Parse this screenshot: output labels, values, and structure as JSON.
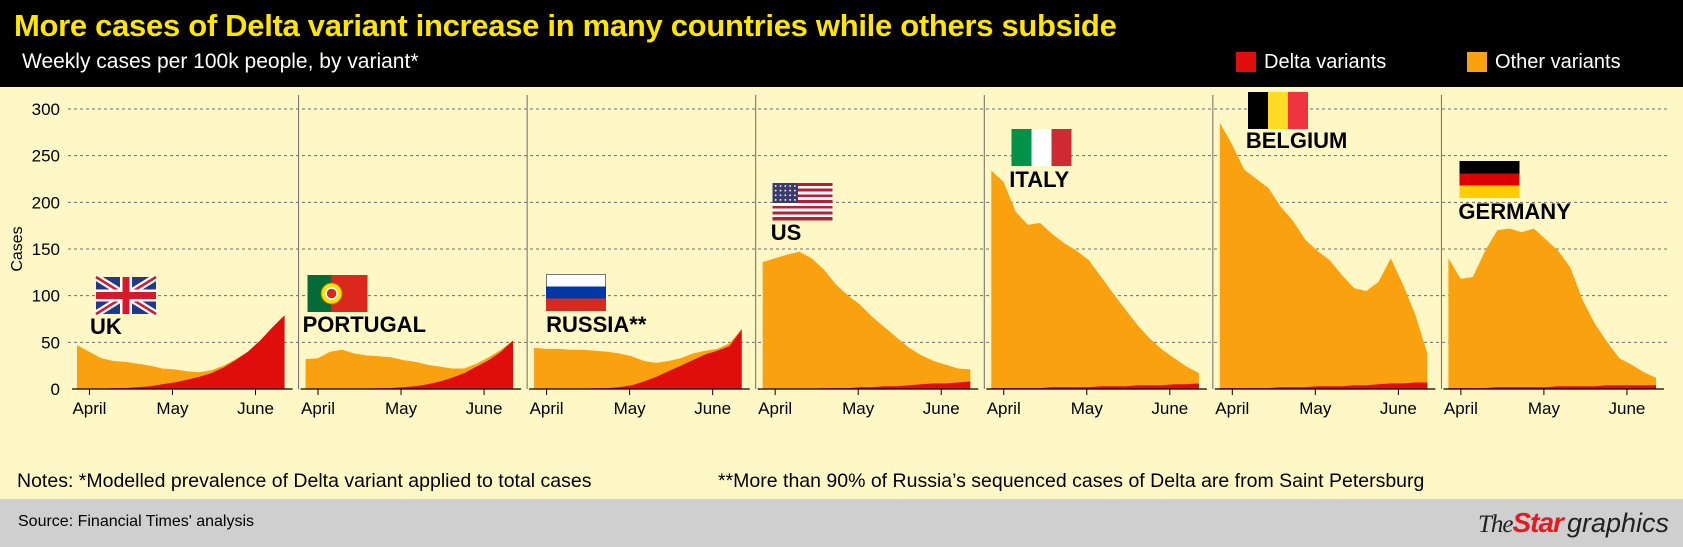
{
  "title": "More cases of Delta variant increase in many countries while others subside",
  "subtitle": "Weekly cases per 100k people, by variant*",
  "legend": {
    "delta_label": "Delta variants",
    "other_label": "Other variants",
    "delta_color": "#e00d0d",
    "other_color": "#f9a10f"
  },
  "notes": {
    "note1": "Notes: *Modelled prevalence of Delta variant applied to total cases",
    "note2": "**More than 90% of Russia’s sequenced cases of Delta are from Saint Petersburg"
  },
  "source": "Source: Financial Times' analysis",
  "logo": {
    "the": "The",
    "star": "Star",
    "graphics": "graphics"
  },
  "chart_data": {
    "type": "area",
    "ylabel": "Cases",
    "ylim": [
      0,
      300
    ],
    "yticks": [
      0,
      50,
      100,
      150,
      200,
      250,
      300
    ],
    "xticks": [
      "April",
      "May",
      "June"
    ],
    "grid": true,
    "stacked": true,
    "series_names": [
      "Delta variants",
      "Other variants"
    ],
    "panels": [
      {
        "country": "UK",
        "flag": "uk",
        "total": [
          47,
          40,
          33,
          30,
          29,
          27,
          25,
          22,
          21,
          19,
          18,
          20,
          25,
          32,
          40,
          52,
          66,
          79
        ],
        "delta": [
          0,
          0,
          0,
          1,
          1,
          2,
          3,
          5,
          7,
          10,
          13,
          17,
          23,
          31,
          40,
          52,
          66,
          79
        ]
      },
      {
        "country": "PORTUGAL",
        "flag": "portugal",
        "total": [
          32,
          33,
          40,
          42,
          38,
          36,
          35,
          34,
          31,
          29,
          26,
          24,
          22,
          22,
          27,
          34,
          42,
          52
        ],
        "delta": [
          0,
          0,
          0,
          0,
          0,
          0,
          1,
          1,
          2,
          3,
          5,
          8,
          12,
          17,
          24,
          31,
          40,
          52
        ]
      },
      {
        "country": "RUSSIA**",
        "flag": "russia",
        "total": [
          44,
          43,
          43,
          42,
          42,
          41,
          40,
          38,
          35,
          30,
          28,
          30,
          33,
          38,
          41,
          43,
          49,
          64
        ],
        "delta": [
          0,
          0,
          0,
          0,
          0,
          1,
          1,
          2,
          4,
          8,
          13,
          19,
          25,
          31,
          37,
          41,
          46,
          64
        ]
      },
      {
        "country": "US",
        "flag": "us",
        "total": [
          136,
          140,
          144,
          147,
          140,
          128,
          112,
          100,
          90,
          77,
          66,
          55,
          44,
          36,
          30,
          26,
          22,
          21
        ],
        "delta": [
          0,
          0,
          0,
          0,
          0,
          1,
          1,
          1,
          2,
          2,
          3,
          3,
          4,
          5,
          6,
          6,
          7,
          8
        ]
      },
      {
        "country": "ITALY",
        "flag": "italy",
        "total": [
          234,
          222,
          190,
          176,
          178,
          166,
          156,
          148,
          138,
          120,
          102,
          85,
          68,
          54,
          42,
          33,
          24,
          17
        ],
        "delta": [
          1,
          1,
          1,
          1,
          1,
          2,
          2,
          2,
          2,
          3,
          3,
          3,
          4,
          4,
          4,
          5,
          5,
          6
        ]
      },
      {
        "country": "BELGIUM",
        "flag": "belgium",
        "total": [
          285,
          262,
          235,
          225,
          215,
          195,
          180,
          160,
          148,
          138,
          122,
          108,
          105,
          115,
          140,
          112,
          80,
          38
        ],
        "delta": [
          1,
          1,
          1,
          1,
          1,
          2,
          2,
          2,
          3,
          3,
          3,
          4,
          4,
          5,
          6,
          6,
          7,
          7
        ]
      },
      {
        "country": "GERMANY",
        "flag": "germany",
        "total": [
          140,
          118,
          120,
          148,
          170,
          172,
          168,
          172,
          160,
          148,
          130,
          95,
          70,
          50,
          33,
          26,
          18,
          12
        ],
        "delta": [
          1,
          1,
          1,
          1,
          2,
          2,
          2,
          2,
          2,
          3,
          3,
          3,
          3,
          4,
          4,
          4,
          4,
          4
        ]
      }
    ]
  }
}
